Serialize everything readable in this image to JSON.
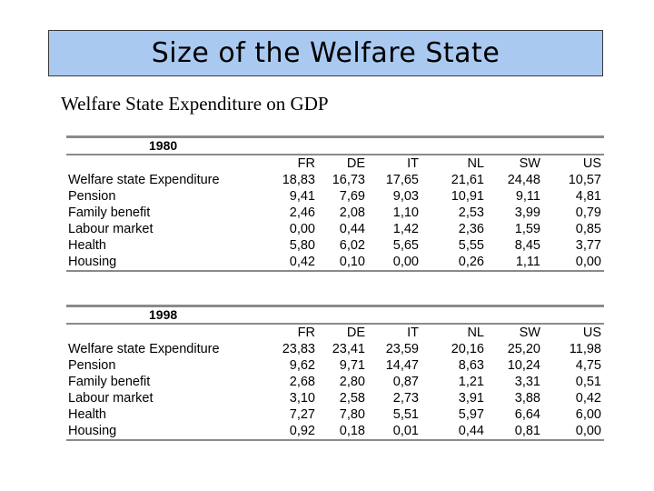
{
  "slide": {
    "title": "Size of the Welfare State",
    "subtitle": "Welfare State Expenditure on GDP"
  },
  "columns": [
    "FR",
    "DE",
    "IT",
    "NL",
    "SW",
    "US"
  ],
  "tables": [
    {
      "year": "1980",
      "rows": [
        {
          "label": "Welfare state Expenditure",
          "values": [
            "18,83",
            "16,73",
            "17,65",
            "21,61",
            "24,48",
            "10,57"
          ]
        },
        {
          "label": "Pension",
          "values": [
            "9,41",
            "7,69",
            "9,03",
            "10,91",
            "9,11",
            "4,81"
          ]
        },
        {
          "label": "Family benefit",
          "values": [
            "2,46",
            "2,08",
            "1,10",
            "2,53",
            "3,99",
            "0,79"
          ]
        },
        {
          "label": "Labour market",
          "values": [
            "0,00",
            "0,44",
            "1,42",
            "2,36",
            "1,59",
            "0,85"
          ]
        },
        {
          "label": "Health",
          "values": [
            "5,80",
            "6,02",
            "5,65",
            "5,55",
            "8,45",
            "3,77"
          ]
        },
        {
          "label": "Housing",
          "values": [
            "0,42",
            "0,10",
            "0,00",
            "0,26",
            "1,11",
            "0,00"
          ]
        }
      ]
    },
    {
      "year": "1998",
      "rows": [
        {
          "label": "Welfare state Expenditure",
          "values": [
            "23,83",
            "23,41",
            "23,59",
            "20,16",
            "25,20",
            "11,98"
          ]
        },
        {
          "label": "Pension",
          "values": [
            "9,62",
            "9,71",
            "14,47",
            "8,63",
            "10,24",
            "4,75"
          ]
        },
        {
          "label": "Family benefit",
          "values": [
            "2,68",
            "2,80",
            "0,87",
            "1,21",
            "3,31",
            "0,51"
          ]
        },
        {
          "label": "Labour market",
          "values": [
            "3,10",
            "2,58",
            "2,73",
            "3,91",
            "3,88",
            "0,42"
          ]
        },
        {
          "label": "Health",
          "values": [
            "7,27",
            "7,80",
            "5,51",
            "5,97",
            "6,64",
            "6,00"
          ]
        },
        {
          "label": "Housing",
          "values": [
            "0,92",
            "0,18",
            "0,01",
            "0,44",
            "0,81",
            "0,00"
          ]
        }
      ]
    }
  ]
}
